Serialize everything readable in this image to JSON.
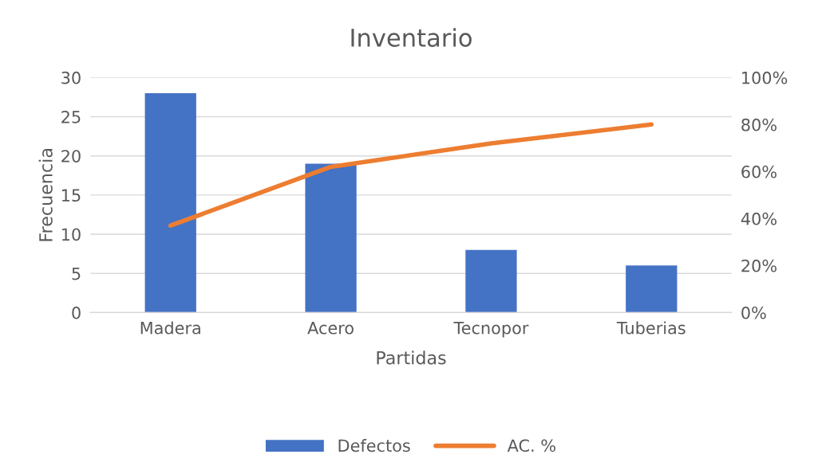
{
  "chart_data": {
    "type": "bar",
    "title": "Inventario",
    "xlabel": "Partidas",
    "ylabel": "Frecuencia",
    "categories": [
      "Madera",
      "Acero",
      "Tecnopor",
      "Tuberias"
    ],
    "series": [
      {
        "name": "Defectos",
        "color": "#4472c4",
        "values": [
          28,
          19,
          8,
          6
        ]
      },
      {
        "name": "AC. %",
        "type": "line",
        "axis": "y2",
        "color": "#ed7d31",
        "values": [
          37,
          62,
          72,
          80
        ]
      }
    ],
    "ylim": [
      0,
      30
    ],
    "yticks": [
      0,
      5,
      10,
      15,
      20,
      25,
      30
    ],
    "y2lim": [
      0,
      100
    ],
    "y2ticks": [
      {
        "value": 0,
        "label": "0%"
      },
      {
        "value": 20,
        "label": "20%"
      },
      {
        "value": 40,
        "label": "40%"
      },
      {
        "value": 60,
        "label": "60%"
      },
      {
        "value": 80,
        "label": "80%"
      },
      {
        "value": 100,
        "label": "100%"
      }
    ],
    "grid": "y",
    "legend": "bottom",
    "marker": "none",
    "line_style": "solid"
  }
}
